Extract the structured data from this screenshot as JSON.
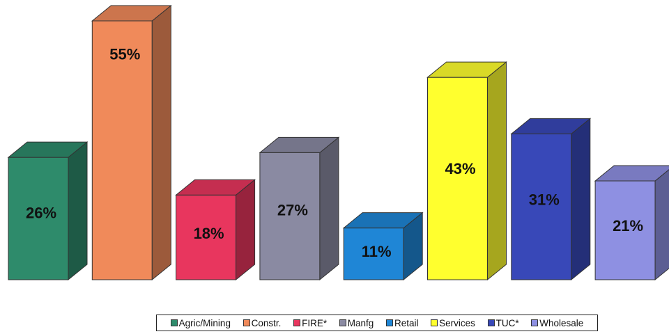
{
  "chart_data": {
    "type": "bar",
    "title": "",
    "xlabel": "",
    "ylabel": "",
    "categories": [
      "Agric/Mining",
      "Constr.",
      "FIRE*",
      "Manfg",
      "Retail",
      "Services",
      "TUC*",
      "Wholesale"
    ],
    "values": [
      26,
      55,
      18,
      27,
      11,
      43,
      31,
      21
    ],
    "value_labels": [
      "26%",
      "55%",
      "18%",
      "27%",
      "11%",
      "43%",
      "31%",
      "21%"
    ],
    "ylim": [
      0,
      55
    ],
    "grid": false,
    "legend_position": "bottom-right",
    "colors": [
      "#2e8b6b",
      "#f08a5a",
      "#e8365e",
      "#8a8aa2",
      "#1f86d6",
      "#ffff2e",
      "#3848b8",
      "#8e90e2"
    ],
    "label_colors": [
      "#111111",
      "#111111",
      "#111111",
      "#111111",
      "#111111",
      "#111111",
      "#111111",
      "#111111"
    ]
  }
}
